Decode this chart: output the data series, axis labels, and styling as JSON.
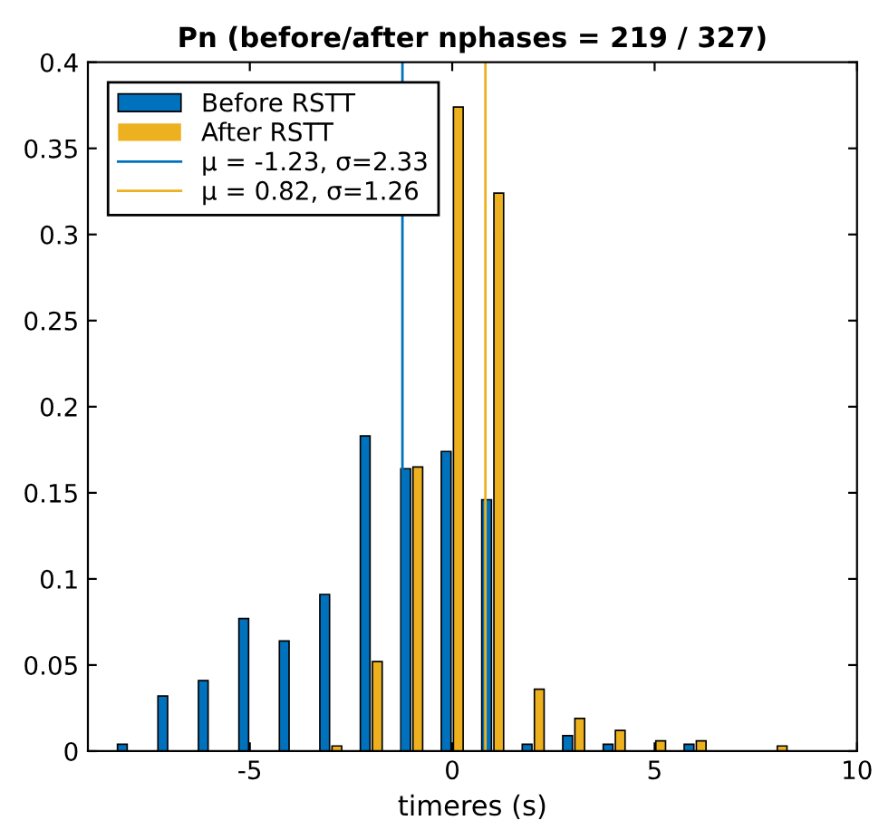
{
  "chart_data": {
    "type": "bar",
    "title": "Pn (before/after nphases = 219 / 327)",
    "xlabel": "timeres (s)",
    "x": [
      -8,
      -7,
      -6,
      -5,
      -4,
      -3,
      -2,
      -1,
      0,
      1,
      2,
      3,
      4,
      5,
      6,
      7,
      8
    ],
    "series": [
      {
        "name": "Before RSTT",
        "color": "#0072bd",
        "values": [
          0.004,
          0.032,
          0.041,
          0.077,
          0.064,
          0.091,
          0.183,
          0.164,
          0.174,
          0.146,
          0.004,
          0.009,
          0.004,
          0,
          0.004,
          0,
          0
        ]
      },
      {
        "name": "After RSTT",
        "color": "#edb120",
        "values": [
          0,
          0,
          0,
          0,
          0,
          0.003,
          0.052,
          0.165,
          0.374,
          0.324,
          0.036,
          0.019,
          0.012,
          0.006,
          0.006,
          0,
          0.003
        ]
      }
    ],
    "ref_lines": [
      {
        "axis": "x",
        "value": -1.23,
        "label": "μ = -1.23, σ=2.33",
        "color": "#0072bd"
      },
      {
        "axis": "x",
        "value": 0.82,
        "label": "μ = 0.82, σ=1.26",
        "color": "#edb120"
      }
    ],
    "xlim": [
      -9,
      10
    ],
    "xticks": [
      -5,
      0,
      5,
      10
    ],
    "ylim": [
      0,
      0.4
    ],
    "yticks": [
      0,
      0.05,
      0.1,
      0.15,
      0.2,
      0.25,
      0.3,
      0.35,
      0.4
    ],
    "legend": "top left",
    "grid": false
  }
}
